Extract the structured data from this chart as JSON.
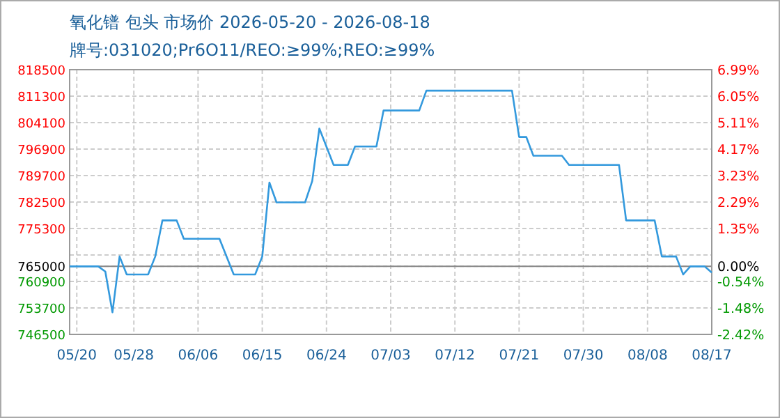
{
  "chart_data": {
    "type": "line",
    "title": "氧化镨 包头 市场价 2026-05-20 - 2026-08-18",
    "subtitle": "牌号:031020;Pr6O11/REO:≥99%;REO:≥99%",
    "x": [
      "2026-05-19",
      "2026-05-23",
      "2026-05-24",
      "2026-05-25",
      "2026-05-26",
      "2026-05-27",
      "2026-05-30",
      "2026-05-31",
      "2026-06-01",
      "2026-06-03",
      "2026-06-04",
      "2026-06-09",
      "2026-06-11",
      "2026-06-14",
      "2026-06-15",
      "2026-06-16",
      "2026-06-17",
      "2026-06-21",
      "2026-06-22",
      "2026-06-23",
      "2026-06-25",
      "2026-06-27",
      "2026-06-28",
      "2026-07-01",
      "2026-07-02",
      "2026-07-07",
      "2026-07-08",
      "2026-07-20",
      "2026-07-21",
      "2026-07-22",
      "2026-07-23",
      "2026-07-27",
      "2026-07-28",
      "2026-08-04",
      "2026-08-05",
      "2026-08-09",
      "2026-08-10",
      "2026-08-12",
      "2026-08-13",
      "2026-08-14",
      "2026-08-16",
      "2026-08-17"
    ],
    "series": [
      {
        "color": "#3399dd",
        "values": [
          765000,
          765000,
          763600,
          752500,
          767700,
          762800,
          762800,
          767700,
          777500,
          777500,
          772500,
          772500,
          762800,
          762800,
          767700,
          787800,
          782400,
          782400,
          788200,
          802500,
          792600,
          792600,
          797600,
          797600,
          807400,
          807400,
          812800,
          812800,
          800200,
          800200,
          795100,
          795100,
          792600,
          792600,
          777500,
          777500,
          767700,
          767700,
          762800,
          765000,
          765000,
          763300
        ]
      }
    ],
    "xlim": [
      "2026-05-19",
      "2026-08-17"
    ],
    "xticks": [
      {
        "value": "2026-05-20",
        "label": "05/20"
      },
      {
        "value": "2026-05-28",
        "label": "05/28"
      },
      {
        "value": "2026-06-06",
        "label": "06/06"
      },
      {
        "value": "2026-06-15",
        "label": "06/15"
      },
      {
        "value": "2026-06-24",
        "label": "06/24"
      },
      {
        "value": "2026-07-03",
        "label": "07/03"
      },
      {
        "value": "2026-07-12",
        "label": "07/12"
      },
      {
        "value": "2026-07-21",
        "label": "07/21"
      },
      {
        "value": "2026-07-30",
        "label": "07/30"
      },
      {
        "value": "2026-08-08",
        "label": "08/08"
      },
      {
        "value": "2026-08-17",
        "label": "08/17"
      }
    ],
    "ylim": [
      746500,
      818500
    ],
    "yticks": [
      746500,
      753700,
      760900,
      765000,
      {
        "value": 768100,
        "label": null
      },
      775300,
      782500,
      789700,
      796900,
      804100,
      811300,
      818500
    ],
    "y2lim": [
      -2.42,
      6.99
    ],
    "y2ticks": [
      {
        "value": -2.42,
        "label": "-2.42%"
      },
      {
        "value": -1.48,
        "label": "-1.48%"
      },
      {
        "value": -0.54,
        "label": "-0.54%"
      },
      {
        "value": 0,
        "label": "0.00%"
      },
      {
        "value": 1.35,
        "label": "1.35%"
      },
      {
        "value": 2.29,
        "label": "2.29%"
      },
      {
        "value": 3.23,
        "label": "3.23%"
      },
      {
        "value": 4.17,
        "label": "4.17%"
      },
      {
        "value": 5.11,
        "label": "5.11%"
      },
      {
        "value": 6.05,
        "label": "6.05%"
      },
      {
        "value": 6.99,
        "label": "6.99%"
      }
    ],
    "ref_lines": [
      {
        "axis": "y",
        "value": 765000
      }
    ],
    "grid": true
  }
}
